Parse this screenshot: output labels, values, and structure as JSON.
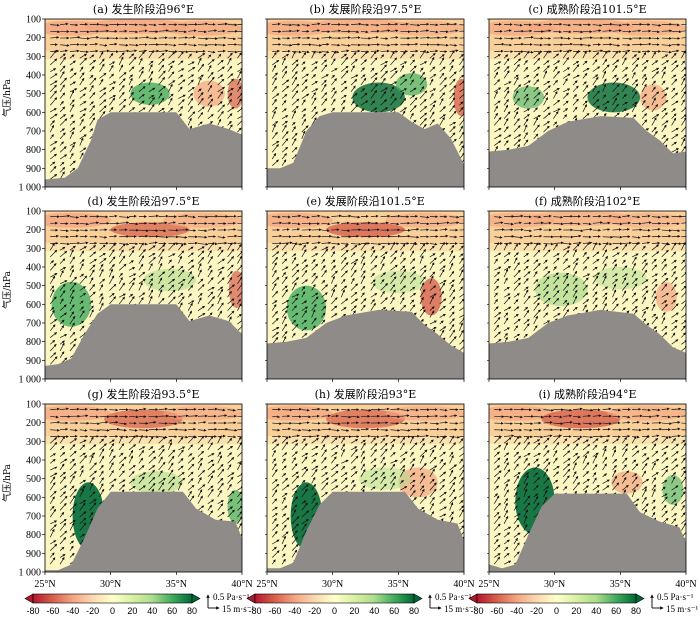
{
  "figure": {
    "panels": [
      {
        "label": "(a) 发生阶段沿96°E"
      },
      {
        "label": "(b) 发展阶段沿97.5°E"
      },
      {
        "label": "(c) 成熟阶段沿101.5°E"
      },
      {
        "label": "(d) 发生阶段沿97.5°E"
      },
      {
        "label": "(e) 发展阶段沿101.5°E"
      },
      {
        "label": "(f) 成熟阶段沿102°E"
      },
      {
        "label": "(g) 发生阶段沿93.5°E"
      },
      {
        "label": "(h) 发展阶段沿93°E"
      },
      {
        "label": "(i) 成熟阶段沿94°E"
      }
    ],
    "y_axis_label": "气压/hPa",
    "y_ticks": [
      "100",
      "200",
      "300",
      "400",
      "500",
      "600",
      "700",
      "800",
      "900",
      "1 000"
    ],
    "x_ticks": [
      "25°N",
      "30°N",
      "35°N",
      "40°N"
    ],
    "colorbar": {
      "ticks": [
        "-80",
        "-60",
        "-40",
        "-20",
        "0",
        "20",
        "40",
        "60",
        "80"
      ],
      "colors": [
        "#b2182b",
        "#d6604d",
        "#f4a582",
        "#fbd9b0",
        "#ffffcc",
        "#d9f0a3",
        "#addd8e",
        "#41ab5d",
        "#006837"
      ]
    },
    "vector_key": {
      "omega": "0.5 Pa·s⁻¹",
      "wind": "15 m·s⁻¹"
    },
    "terrain_color": "#8f8b89"
  },
  "chart_data": {
    "type": "heatmap",
    "description_fields": "vertical cross sections: shading = vertical motion (colorbar -80..80), vectors = meridional circulation, grey = terrain",
    "x_range": [
      "25°N",
      "40°N"
    ],
    "y_range_hpa": [
      100,
      1000
    ],
    "colorbar_range": [
      -80,
      80
    ],
    "terrain_surface_hpa": [
      {
        "panel": "a",
        "lat": [
          25,
          26.5,
          27.5,
          28.5,
          29,
          30,
          34,
          35,
          36,
          37.5,
          39,
          40
        ],
        "p": [
          960,
          950,
          900,
          750,
          640,
          600,
          600,
          600,
          690,
          660,
          690,
          720
        ]
      },
      {
        "panel": "b",
        "lat": [
          25,
          26,
          27,
          28,
          29,
          30,
          35,
          36,
          37,
          38,
          39,
          40
        ],
        "p": [
          900,
          900,
          870,
          700,
          620,
          600,
          600,
          650,
          690,
          660,
          740,
          880
        ]
      },
      {
        "panel": "c",
        "lat": [
          25,
          26.5,
          28,
          29.5,
          31,
          33.5,
          36,
          37,
          38,
          39,
          40
        ],
        "p": [
          810,
          800,
          780,
          700,
          650,
          620,
          630,
          700,
          750,
          820,
          810
        ]
      },
      {
        "panel": "d",
        "lat": [
          25,
          26,
          27,
          28,
          29,
          30,
          34,
          35,
          36,
          37.5,
          39,
          40
        ],
        "p": [
          930,
          920,
          890,
          760,
          650,
          600,
          600,
          600,
          690,
          660,
          690,
          760
        ]
      },
      {
        "panel": "e",
        "lat": [
          25,
          26.5,
          28,
          29.5,
          31,
          33.5,
          36,
          37,
          38,
          39,
          40
        ],
        "p": [
          810,
          800,
          780,
          700,
          660,
          630,
          640,
          710,
          760,
          820,
          860
        ]
      },
      {
        "panel": "f",
        "lat": [
          25,
          26.5,
          28,
          29.5,
          31,
          33.5,
          36,
          37,
          38,
          39,
          40
        ],
        "p": [
          810,
          800,
          780,
          700,
          660,
          630,
          650,
          710,
          760,
          830,
          860
        ]
      },
      {
        "panel": "g",
        "lat": [
          25,
          26,
          27,
          28,
          29,
          30,
          35.5,
          36.5,
          38,
          39.5,
          40
        ],
        "p": [
          990,
          990,
          960,
          820,
          660,
          570,
          570,
          660,
          720,
          730,
          820
        ]
      },
      {
        "panel": "h",
        "lat": [
          25,
          26,
          27,
          28,
          29,
          30,
          35.5,
          36.5,
          38,
          39.5,
          40
        ],
        "p": [
          980,
          980,
          950,
          780,
          640,
          570,
          570,
          660,
          720,
          740,
          830
        ]
      },
      {
        "panel": "i",
        "lat": [
          25,
          26,
          27,
          28,
          29,
          30,
          35.5,
          36.5,
          38,
          39.5,
          40
        ],
        "p": [
          960,
          980,
          960,
          800,
          650,
          580,
          580,
          680,
          730,
          760,
          840
        ]
      }
    ]
  }
}
